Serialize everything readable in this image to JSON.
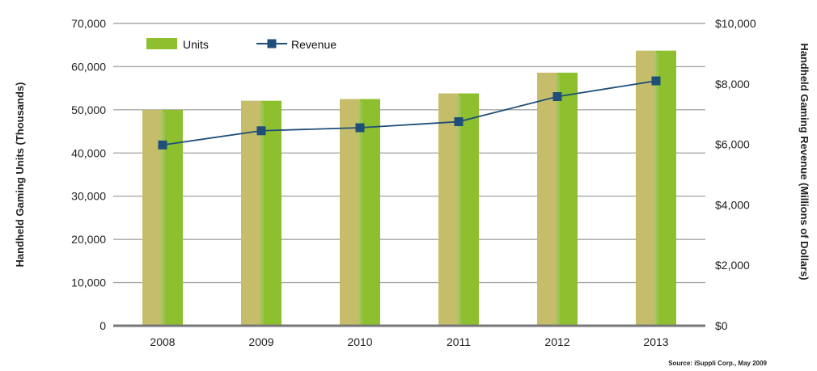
{
  "chart_data": {
    "type": "bar",
    "title": "",
    "categories": [
      "2008",
      "2009",
      "2010",
      "2011",
      "2012",
      "2013"
    ],
    "series": [
      {
        "name": "Units",
        "type": "bar",
        "axis": "left",
        "color": "#8dbf2e",
        "values": [
          50000,
          52100,
          52500,
          53800,
          58600,
          63700
        ]
      },
      {
        "name": "Revenue",
        "type": "line",
        "axis": "right",
        "color": "#1f4e79",
        "values": [
          5980,
          6450,
          6550,
          6750,
          7580,
          8100
        ]
      }
    ],
    "ylabel_left": "Handheld Gaming Units (Thousands)",
    "ylabel_right": "Handheld Gaming Revenue (Millions of Dollars)",
    "ylim_left": [
      0,
      70000
    ],
    "ylim_right": [
      0,
      10000
    ],
    "yticks_left": [
      "0",
      "10,000",
      "20,000",
      "30,000",
      "40,000",
      "50,000",
      "60,000",
      "70,000"
    ],
    "yticks_right": [
      "$0",
      "$2,000",
      "$4,000",
      "$6,000",
      "$8,000",
      "$10,000"
    ],
    "grid": true,
    "legend_position": "top-left",
    "source": "Source: iSuppli Corp., May 2009"
  }
}
